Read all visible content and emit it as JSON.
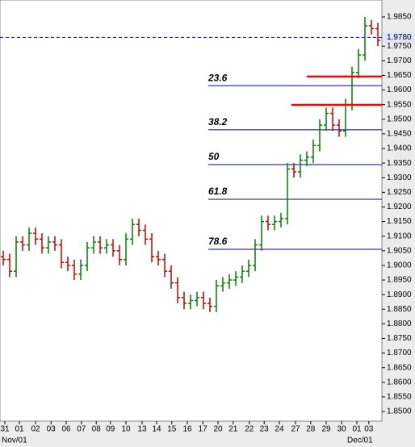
{
  "chart_data": {
    "type": "ohlc",
    "up_color": "#008000",
    "down_color": "#cc0000",
    "x": [
      0.5,
      1.5,
      2.5,
      3.5,
      4.5,
      5.5,
      6.5,
      7.5,
      8.5,
      9.5,
      10.5,
      11.5,
      12.5,
      13.5,
      14.5,
      15.5,
      16.5,
      17.5,
      18.5,
      19.5,
      20.5,
      21.5,
      22.5,
      23.5,
      24.5,
      25.5,
      26.5,
      27.5,
      28.5,
      29.5,
      30.5,
      31.5,
      32.5,
      33.5,
      34.5,
      35.5,
      36.5,
      37.5,
      38.5,
      39.5,
      40.5,
      41.5,
      42.5,
      43.5,
      44.5,
      45.5,
      46.5,
      47.5,
      48.5,
      49.5,
      50.5,
      51.5,
      52.5,
      53.5,
      54.5,
      55.5,
      56.5,
      57.5,
      58.5
    ],
    "open": [
      1.903,
      1.902,
      1.898,
      1.908,
      1.907,
      1.911,
      1.909,
      1.906,
      1.908,
      1.907,
      1.901,
      1.9,
      1.897,
      1.9,
      1.906,
      1.908,
      1.906,
      1.907,
      1.905,
      1.902,
      1.909,
      1.914,
      1.912,
      1.909,
      1.903,
      1.902,
      1.898,
      1.894,
      1.889,
      1.887,
      1.888,
      1.889,
      1.887,
      1.886,
      1.893,
      1.894,
      1.895,
      1.896,
      1.898,
      1.9,
      1.907,
      1.915,
      1.914,
      1.915,
      1.916,
      1.933,
      1.932,
      1.936,
      1.937,
      1.941,
      1.948,
      1.952,
      1.948,
      1.946,
      1.955,
      1.966,
      1.972,
      1.982,
      1.981
    ],
    "high": [
      1.905,
      1.904,
      1.91,
      1.91,
      1.913,
      1.913,
      1.911,
      1.91,
      1.91,
      1.909,
      1.903,
      1.902,
      1.902,
      1.908,
      1.91,
      1.91,
      1.909,
      1.909,
      1.907,
      1.911,
      1.916,
      1.916,
      1.914,
      1.911,
      1.905,
      1.904,
      1.9,
      1.896,
      1.891,
      1.89,
      1.891,
      1.891,
      1.889,
      1.895,
      1.896,
      1.897,
      1.898,
      1.9,
      1.902,
      1.909,
      1.917,
      1.917,
      1.917,
      1.918,
      1.935,
      1.935,
      1.938,
      1.939,
      1.943,
      1.95,
      1.954,
      1.954,
      1.95,
      1.957,
      1.968,
      1.974,
      1.985,
      1.984,
      1.983
    ],
    "low": [
      1.9,
      1.896,
      1.896,
      1.905,
      1.905,
      1.907,
      1.904,
      1.904,
      1.905,
      1.899,
      1.898,
      1.895,
      1.895,
      1.898,
      1.904,
      1.904,
      1.904,
      1.903,
      1.9,
      1.9,
      1.907,
      1.91,
      1.907,
      1.901,
      1.9,
      1.896,
      1.892,
      1.887,
      1.885,
      1.885,
      1.886,
      1.885,
      1.884,
      1.884,
      1.891,
      1.892,
      1.893,
      1.894,
      1.896,
      1.898,
      1.905,
      1.912,
      1.912,
      1.913,
      1.914,
      1.93,
      1.93,
      1.934,
      1.935,
      1.939,
      1.946,
      1.946,
      1.944,
      1.944,
      1.953,
      1.964,
      1.97,
      1.979,
      1.975
    ],
    "close": [
      1.902,
      1.898,
      1.908,
      1.907,
      1.911,
      1.909,
      1.906,
      1.908,
      1.907,
      1.901,
      1.9,
      1.897,
      1.9,
      1.906,
      1.908,
      1.906,
      1.907,
      1.905,
      1.902,
      1.909,
      1.914,
      1.912,
      1.909,
      1.903,
      1.902,
      1.898,
      1.894,
      1.889,
      1.887,
      1.888,
      1.889,
      1.887,
      1.886,
      1.893,
      1.894,
      1.895,
      1.896,
      1.898,
      1.9,
      1.907,
      1.915,
      1.914,
      1.915,
      1.916,
      1.933,
      1.932,
      1.936,
      1.937,
      1.941,
      1.948,
      1.952,
      1.948,
      1.946,
      1.955,
      1.966,
      1.972,
      1.982,
      1.981,
      1.977
    ],
    "xlim": [
      0,
      59.125
    ],
    "ylim": [
      1.8467,
      1.9908
    ],
    "yticks": [
      {
        "value": 1.85,
        "label": "1.8500"
      },
      {
        "value": 1.855,
        "label": "1.8550"
      },
      {
        "value": 1.86,
        "label": "1.8600"
      },
      {
        "value": 1.865,
        "label": "1.8650"
      },
      {
        "value": 1.87,
        "label": "1.8700"
      },
      {
        "value": 1.875,
        "label": "1.8750"
      },
      {
        "value": 1.88,
        "label": "1.8800"
      },
      {
        "value": 1.885,
        "label": "1.8850"
      },
      {
        "value": 1.89,
        "label": "1.8900"
      },
      {
        "value": 1.895,
        "label": "1.8950"
      },
      {
        "value": 1.9,
        "label": "1.9000"
      },
      {
        "value": 1.905,
        "label": "1.9050"
      },
      {
        "value": 1.91,
        "label": "1.9100"
      },
      {
        "value": 1.915,
        "label": "1.9150"
      },
      {
        "value": 1.92,
        "label": "1.9200"
      },
      {
        "value": 1.925,
        "label": "1.9250"
      },
      {
        "value": 1.93,
        "label": "1.9300"
      },
      {
        "value": 1.935,
        "label": "1.9350"
      },
      {
        "value": 1.94,
        "label": "1.9400"
      },
      {
        "value": 1.945,
        "label": "1.9450"
      },
      {
        "value": 1.95,
        "label": "1.9500"
      },
      {
        "value": 1.955,
        "label": "1.9550"
      },
      {
        "value": 1.96,
        "label": "1.9600"
      },
      {
        "value": 1.965,
        "label": "1.9650"
      },
      {
        "value": 1.97,
        "label": "1.9700"
      },
      {
        "value": 1.975,
        "label": "1.9750"
      },
      {
        "value": 1.985,
        "label": "1.9850"
      }
    ],
    "xticks": [
      {
        "value": 0.75,
        "label": "31"
      },
      {
        "value": 3,
        "label": "01"
      },
      {
        "value": 5.5,
        "label": "02"
      },
      {
        "value": 7.9,
        "label": "03"
      },
      {
        "value": 10.25,
        "label": "06"
      },
      {
        "value": 12.6,
        "label": "07"
      },
      {
        "value": 14.9,
        "label": "08"
      },
      {
        "value": 17.1,
        "label": "09"
      },
      {
        "value": 19.5,
        "label": "10"
      },
      {
        "value": 22,
        "label": "13"
      },
      {
        "value": 24.25,
        "label": "14"
      },
      {
        "value": 26.6,
        "label": "15"
      },
      {
        "value": 29,
        "label": "16"
      },
      {
        "value": 31.4,
        "label": "17"
      },
      {
        "value": 33.75,
        "label": "20"
      },
      {
        "value": 36.1,
        "label": "21"
      },
      {
        "value": 38.6,
        "label": "22"
      },
      {
        "value": 40.9,
        "label": "23"
      },
      {
        "value": 43.25,
        "label": "24"
      },
      {
        "value": 45.75,
        "label": "27"
      },
      {
        "value": 48.1,
        "label": "28"
      },
      {
        "value": 50.5,
        "label": "29"
      },
      {
        "value": 52.9,
        "label": "30"
      },
      {
        "value": 55.25,
        "label": "01"
      },
      {
        "value": 57.1,
        "label": "03"
      }
    ],
    "month_labels": [
      {
        "value": 0,
        "label": "Nov/01"
      },
      {
        "value": 53.5,
        "label": "Dec/01"
      }
    ],
    "last_price": {
      "value": 1.978,
      "label": "1.9780",
      "color": "#0000cc"
    },
    "fib_levels": [
      {
        "label": "23.6",
        "value": 1.9615,
        "from_x": 32.25
      },
      {
        "label": "38.2",
        "value": 1.9464,
        "from_x": 32.25
      },
      {
        "label": "50",
        "value": 1.9345,
        "from_x": 32.25
      },
      {
        "label": "61.8",
        "value": 1.9226,
        "from_x": 32.25
      },
      {
        "label": "78.6",
        "value": 1.9055,
        "from_x": 32.25
      }
    ],
    "fib_color": "#000080",
    "resistance_lines": [
      {
        "value": 1.9646,
        "from_x": 47.5
      },
      {
        "value": 1.9549,
        "from_x": 45.125
      }
    ],
    "resistance_color": "#ff0000"
  }
}
